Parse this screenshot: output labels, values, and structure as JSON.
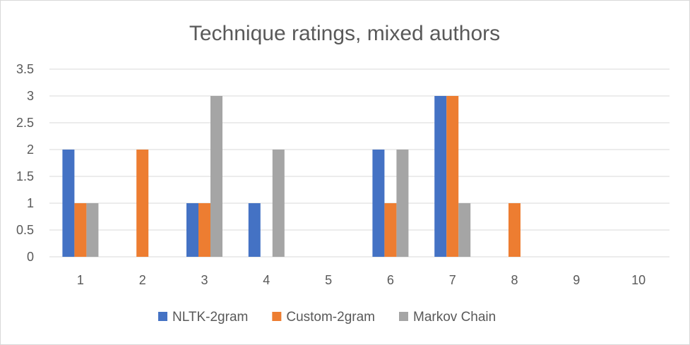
{
  "chart_data": {
    "type": "bar",
    "title": "Technique ratings, mixed authors",
    "xlabel": "",
    "ylabel": "",
    "categories": [
      "1",
      "2",
      "3",
      "4",
      "5",
      "6",
      "7",
      "8",
      "9",
      "10"
    ],
    "series": [
      {
        "name": "NLTK-2gram",
        "color": "#4472C4",
        "values": [
          2,
          0,
          1,
          1,
          0,
          2,
          3,
          0,
          0,
          0
        ]
      },
      {
        "name": "Custom-2gram",
        "color": "#ED7D31",
        "values": [
          1,
          2,
          1,
          0,
          0,
          1,
          3,
          1,
          0,
          0
        ]
      },
      {
        "name": "Markov Chain",
        "color": "#A5A5A5",
        "values": [
          1,
          0,
          3,
          2,
          0,
          2,
          1,
          0,
          0,
          0
        ]
      }
    ],
    "ylim": [
      0,
      3.5
    ],
    "yticks": [
      "0",
      "0.5",
      "1",
      "1.5",
      "2",
      "2.5",
      "3",
      "3.5"
    ],
    "grid": true,
    "legend_position": "bottom"
  }
}
